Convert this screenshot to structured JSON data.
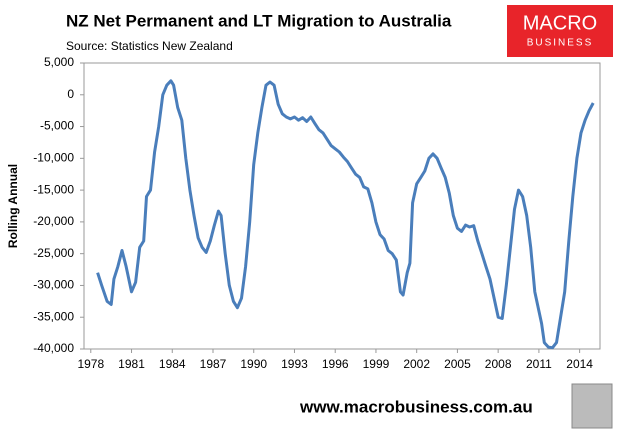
{
  "logo": {
    "line1": "MACRO",
    "line2": "BUSINESS"
  },
  "footer": "www.macrobusiness.com.au",
  "chart_data": {
    "type": "line",
    "title": "NZ Net Permanent and LT Migration to Australia",
    "subtitle": "Source: Statistics New Zealand",
    "y_label": "Rolling Annual",
    "color": "#4a7ebb",
    "grid": false,
    "xlim": [
      1977.5,
      2015.5
    ],
    "xticks": [
      1978,
      1981,
      1984,
      1987,
      1990,
      1993,
      1996,
      1999,
      2002,
      2005,
      2008,
      2011,
      2014
    ],
    "ylim": [
      -40000,
      5000
    ],
    "yticks": [
      {
        "value": 5000,
        "label": "5,000"
      },
      0,
      {
        "value": -5000,
        "label": "-5,000"
      },
      {
        "value": -10000,
        "label": "-10,000"
      },
      {
        "value": -15000,
        "label": "-15,000"
      },
      {
        "value": -20000,
        "label": "-20,000"
      },
      {
        "value": -25000,
        "label": "-25,000"
      },
      {
        "value": -30000,
        "label": "-30,000"
      },
      {
        "value": -35000,
        "label": "-35,000"
      },
      {
        "value": -40000,
        "label": "-40,000"
      }
    ],
    "x": [
      1978.5,
      1978.8,
      1979.2,
      1979.5,
      1979.7,
      1980.0,
      1980.3,
      1980.6,
      1981.0,
      1981.3,
      1981.6,
      1981.9,
      1982.1,
      1982.4,
      1982.7,
      1983.0,
      1983.3,
      1983.6,
      1983.9,
      1984.1,
      1984.4,
      1984.7,
      1985.0,
      1985.3,
      1985.6,
      1985.9,
      1986.2,
      1986.5,
      1986.8,
      1987.1,
      1987.4,
      1987.6,
      1987.9,
      1988.2,
      1988.5,
      1988.8,
      1989.1,
      1989.4,
      1989.7,
      1990.0,
      1990.3,
      1990.6,
      1990.9,
      1991.2,
      1991.5,
      1991.8,
      1992.1,
      1992.4,
      1992.7,
      1993.0,
      1993.3,
      1993.6,
      1993.9,
      1994.2,
      1994.5,
      1994.8,
      1995.1,
      1995.4,
      1995.7,
      1996.0,
      1996.3,
      1996.6,
      1996.9,
      1997.2,
      1997.5,
      1997.8,
      1998.1,
      1998.4,
      1998.7,
      1999.0,
      1999.3,
      1999.6,
      1999.9,
      2000.2,
      2000.5,
      2000.8,
      2001.0,
      2001.3,
      2001.5,
      2001.7,
      2002.0,
      2002.3,
      2002.6,
      2002.9,
      2003.2,
      2003.5,
      2003.8,
      2004.1,
      2004.4,
      2004.7,
      2005.0,
      2005.3,
      2005.6,
      2005.9,
      2006.2,
      2006.5,
      2006.8,
      2007.1,
      2007.4,
      2007.7,
      2008.0,
      2008.3,
      2008.6,
      2008.9,
      2009.2,
      2009.5,
      2009.8,
      2010.1,
      2010.4,
      2010.7,
      2011.0,
      2011.2,
      2011.4,
      2011.7,
      2012.0,
      2012.3,
      2012.6,
      2012.9,
      2013.2,
      2013.5,
      2013.8,
      2014.1,
      2014.4,
      2014.7,
      2015.0
    ],
    "values": [
      -28000,
      -30000,
      -32500,
      -33000,
      -29000,
      -27000,
      -24500,
      -27000,
      -31000,
      -29500,
      -24000,
      -23000,
      -16000,
      -15000,
      -9000,
      -5000,
      0,
      1500,
      2200,
      1500,
      -2000,
      -4000,
      -10000,
      -15000,
      -19000,
      -22500,
      -24000,
      -24800,
      -23000,
      -20500,
      -18300,
      -19000,
      -25000,
      -30000,
      -32500,
      -33500,
      -32000,
      -27000,
      -20000,
      -11000,
      -6000,
      -2000,
      1500,
      2000,
      1500,
      -1500,
      -3000,
      -3500,
      -3800,
      -3500,
      -4000,
      -3600,
      -4200,
      -3500,
      -4500,
      -5500,
      -6000,
      -7000,
      -8000,
      -8500,
      -9000,
      -9800,
      -10500,
      -11500,
      -12500,
      -13000,
      -14500,
      -14800,
      -17000,
      -20000,
      -22000,
      -22700,
      -24500,
      -25000,
      -26000,
      -31000,
      -31500,
      -28000,
      -26500,
      -17000,
      -14000,
      -13000,
      -12000,
      -10000,
      -9300,
      -10000,
      -11500,
      -13000,
      -15500,
      -19000,
      -21000,
      -21500,
      -20500,
      -20800,
      -20600,
      -23000,
      -25000,
      -27000,
      -29000,
      -32000,
      -35000,
      -35200,
      -30000,
      -24000,
      -18000,
      -15000,
      -16000,
      -19000,
      -24000,
      -31000,
      -34000,
      -36000,
      -39000,
      -39700,
      -39800,
      -39000,
      -35000,
      -31000,
      -23000,
      -16000,
      -10000,
      -6000,
      -4000,
      -2500,
      -1300
    ]
  }
}
